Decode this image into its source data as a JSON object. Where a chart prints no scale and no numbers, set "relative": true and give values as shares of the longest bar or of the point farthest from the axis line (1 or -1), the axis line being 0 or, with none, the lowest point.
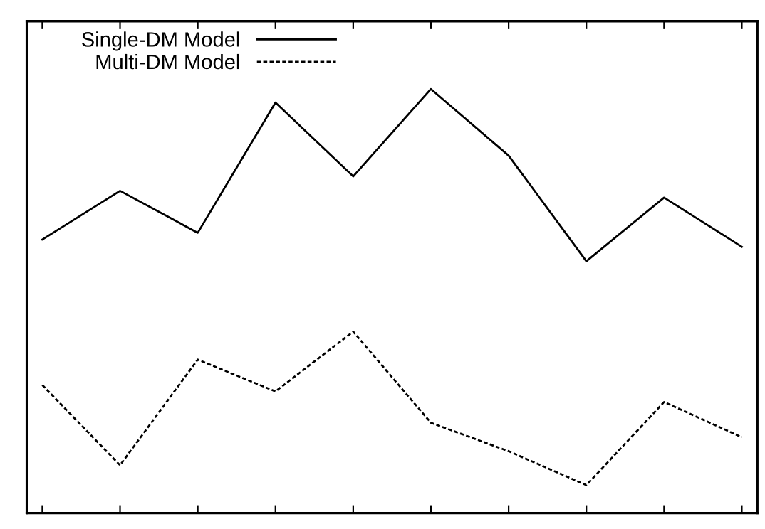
{
  "chart_data": {
    "type": "line",
    "relative": true,
    "categories": [
      null,
      null,
      null,
      null,
      null,
      null,
      null,
      null,
      null,
      null
    ],
    "series": [
      {
        "name": "Single-DM Model",
        "color": "#000000",
        "line_style": "solid",
        "values": [
          0.645,
          0.76,
          0.661,
          0.968,
          0.794,
          1,
          0.843,
          0.594,
          0.744,
          0.628
        ]
      },
      {
        "name": "Multi-DM Model",
        "color": "#000000",
        "line_style": "dashed",
        "values": [
          0.302,
          0.113,
          0.362,
          0.287,
          0.428,
          0.213,
          0.146,
          0.066,
          0.262,
          0.179
        ]
      }
    ],
    "legend": "top left",
    "grid": false,
    "marker": "none"
  }
}
